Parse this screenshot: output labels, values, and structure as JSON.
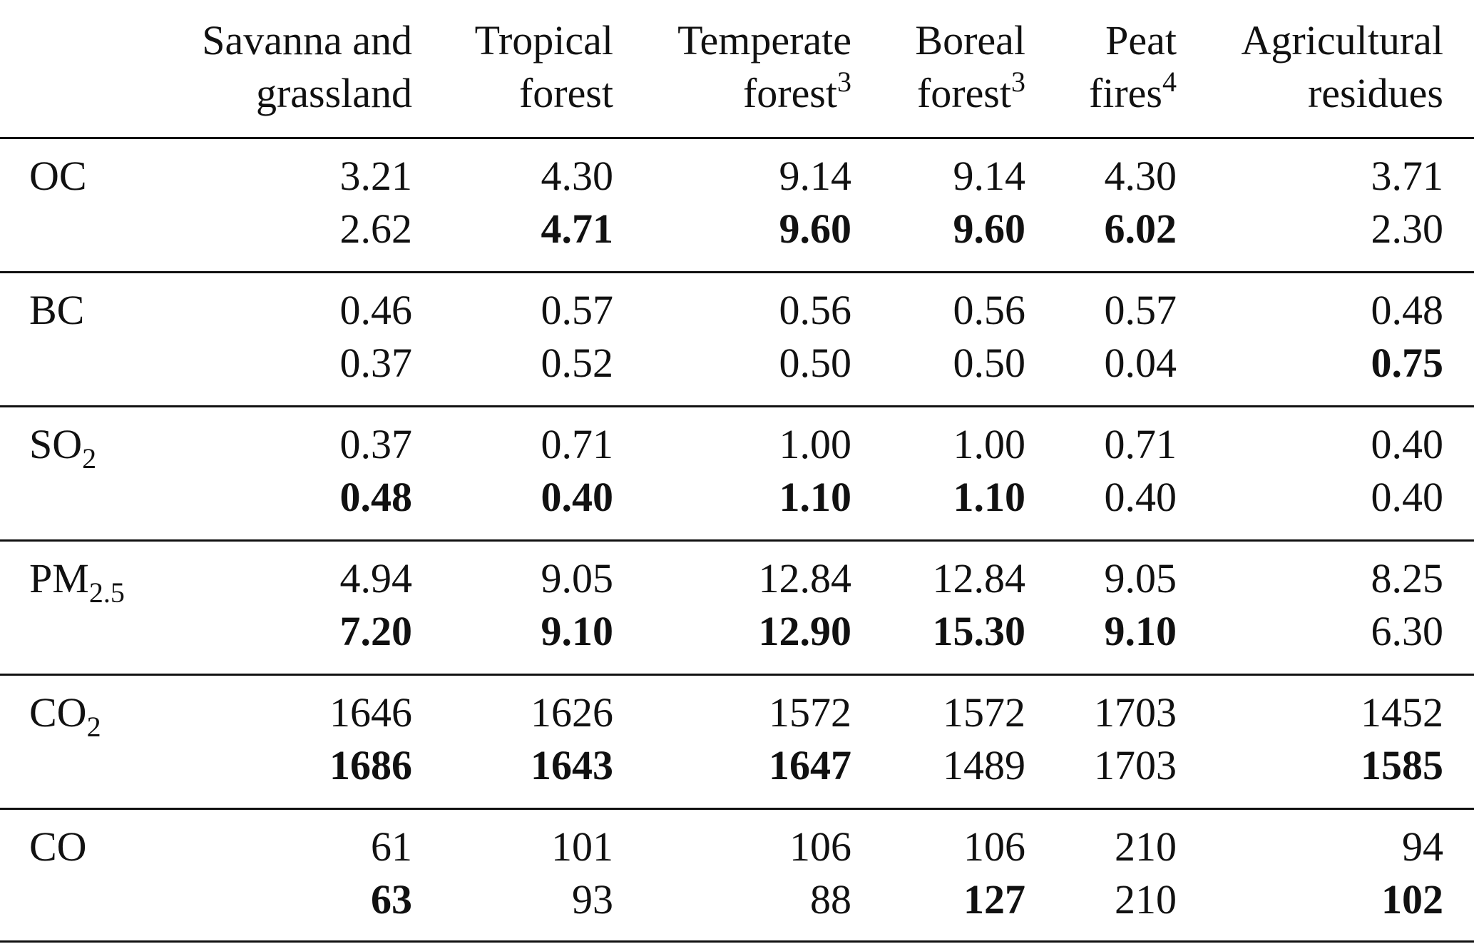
{
  "header": {
    "columns": [
      {
        "line1": "Savanna and",
        "line2": "grassland",
        "sup": ""
      },
      {
        "line1": "Tropical",
        "line2": "forest",
        "sup": ""
      },
      {
        "line1": "Temperate",
        "line2": "forest",
        "sup": "3"
      },
      {
        "line1": "Boreal",
        "line2": "forest",
        "sup": "3"
      },
      {
        "line1": "Peat",
        "line2": "fires",
        "sup": "4"
      },
      {
        "line1": "Agricultural",
        "line2": "residues",
        "sup": ""
      }
    ]
  },
  "rows": [
    {
      "label": "OC",
      "label_sub": "",
      "values1": [
        "3.21",
        "4.30",
        "9.14",
        "9.14",
        "4.30",
        "3.71"
      ],
      "values2": [
        "2.62",
        "4.71",
        "9.60",
        "9.60",
        "6.02",
        "2.30"
      ],
      "bold2": [
        false,
        true,
        true,
        true,
        true,
        false
      ]
    },
    {
      "label": "BC",
      "label_sub": "",
      "values1": [
        "0.46",
        "0.57",
        "0.56",
        "0.56",
        "0.57",
        "0.48"
      ],
      "values2": [
        "0.37",
        "0.52",
        "0.50",
        "0.50",
        "0.04",
        "0.75"
      ],
      "bold2": [
        false,
        false,
        false,
        false,
        false,
        true
      ]
    },
    {
      "label": "SO",
      "label_sub": "2",
      "values1": [
        "0.37",
        "0.71",
        "1.00",
        "1.00",
        "0.71",
        "0.40"
      ],
      "values2": [
        "0.48",
        "0.40",
        "1.10",
        "1.10",
        "0.40",
        "0.40"
      ],
      "bold2": [
        true,
        true,
        true,
        true,
        false,
        false
      ]
    },
    {
      "label": "PM",
      "label_sub": "2.5",
      "values1": [
        "4.94",
        "9.05",
        "12.84",
        "12.84",
        "9.05",
        "8.25"
      ],
      "values2": [
        "7.20",
        "9.10",
        "12.90",
        "15.30",
        "9.10",
        "6.30"
      ],
      "bold2": [
        true,
        true,
        true,
        true,
        true,
        false
      ]
    },
    {
      "label": "CO",
      "label_sub": "2",
      "values1": [
        "1646",
        "1626",
        "1572",
        "1572",
        "1703",
        "1452"
      ],
      "values2": [
        "1686",
        "1643",
        "1647",
        "1489",
        "1703",
        "1585"
      ],
      "bold2": [
        true,
        true,
        true,
        false,
        false,
        true
      ]
    },
    {
      "label": "CO",
      "label_sub": "",
      "values1": [
        "61",
        "101",
        "106",
        "106",
        "210",
        "94"
      ],
      "values2": [
        "63",
        "93",
        "88",
        "127",
        "210",
        "102"
      ],
      "bold2": [
        true,
        false,
        false,
        true,
        false,
        true
      ]
    }
  ]
}
